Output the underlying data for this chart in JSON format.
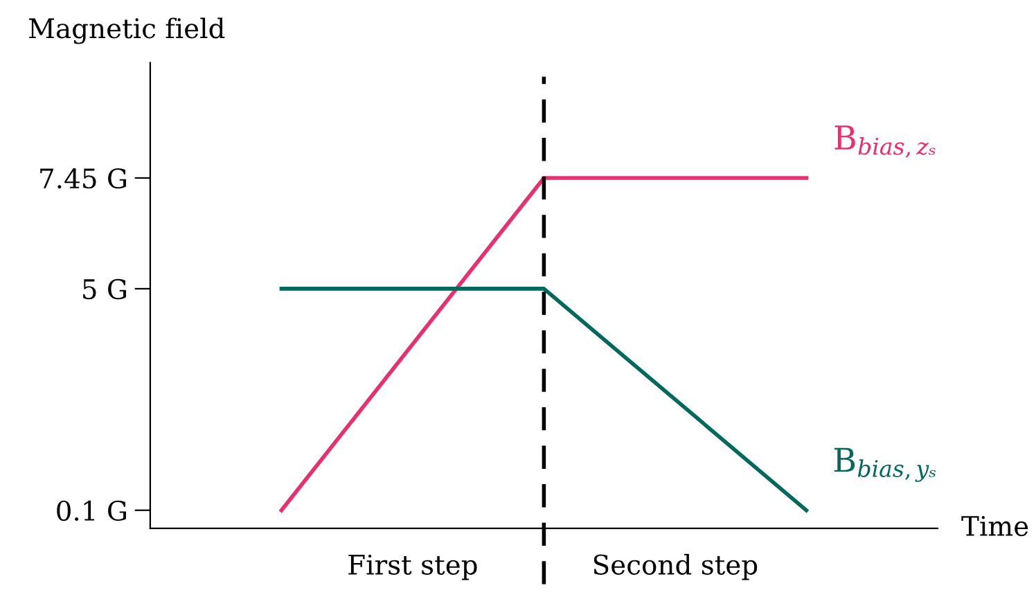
{
  "chart_data": {
    "type": "line",
    "ylabel": "Magnetic field",
    "categories": [
      null,
      null,
      null
    ],
    "series": [
      {
        "name": "B$_{bias,zₛ}$",
        "color": "#e8306f",
        "values": [
          0.1,
          7.45,
          7.45
        ]
      },
      {
        "name": "B$_{bias,yₛ}$",
        "color": "#00695c",
        "values": [
          5,
          5,
          0.1
        ]
      }
    ],
    "ylim": [
      -0.3,
      10
    ],
    "yticks": [
      {
        "value": 0.1,
        "label": "0.1 G"
      },
      {
        "value": 5,
        "label": "5 G"
      },
      {
        "value": 7.45,
        "label": "7.45 G"
      }
    ],
    "annotations": [
      "First step",
      "Second step",
      "Time"
    ],
    "grid": false,
    "legend": false,
    "marker": "none",
    "line_style": "solid"
  }
}
